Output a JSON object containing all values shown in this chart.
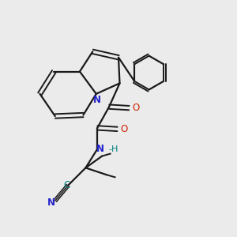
{
  "bg_color": "#ebebeb",
  "bond_color": "#1a1a1a",
  "N_color": "#2222cc",
  "O_color": "#cc2200",
  "C_color": "#008080",
  "figsize": [
    3.0,
    3.0
  ],
  "dpi": 100,
  "xlim": [
    0,
    10
  ],
  "ylim": [
    0,
    10
  ]
}
